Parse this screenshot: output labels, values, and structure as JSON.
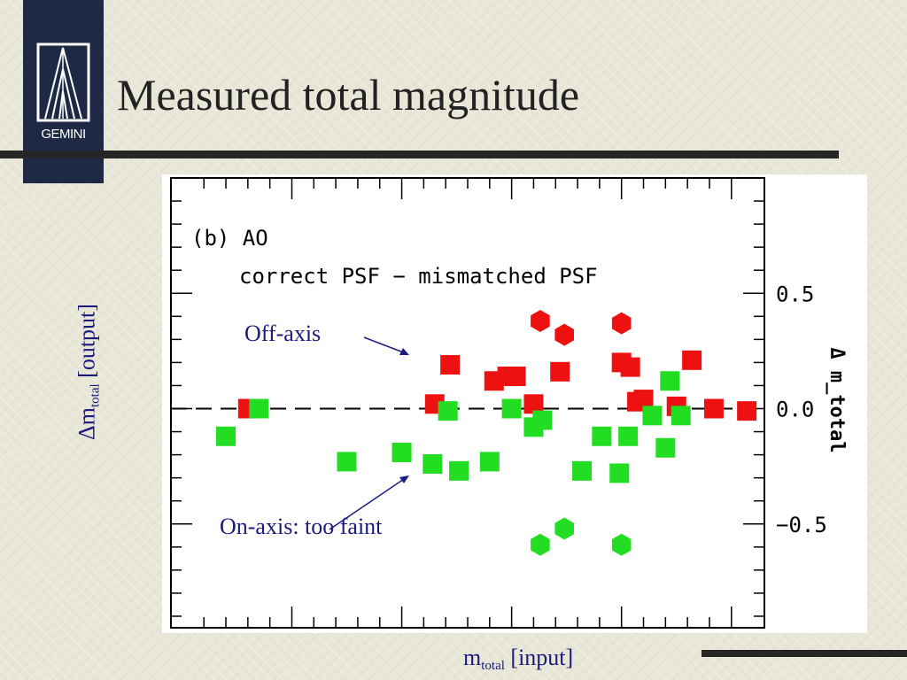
{
  "slide": {
    "title": "Measured total magnitude",
    "logo_text": "GEMINI",
    "ylabel": {
      "prefix": "Δm",
      "sub": "total",
      "suffix": " [output]"
    },
    "xlabel": {
      "prefix": "m",
      "sub": "total",
      "suffix": " [input]"
    }
  },
  "annotations": {
    "off_axis": "Off-axis",
    "on_axis": "On-axis: too faint"
  },
  "colors": {
    "text_blue": "#1a1a80",
    "red_series": "#ee1111",
    "green_series": "#22dd22",
    "dark_bar": "#262626",
    "logo_bg": "#1e2a45"
  },
  "chart_data": {
    "type": "scatter",
    "panel_label": "(b) AO",
    "subtitle": "correct PSF − mismatched PSF",
    "ylabel_right": "Δ m_total",
    "ylim": [
      -0.95,
      1.0
    ],
    "y_ticks": [
      0.5,
      0.0,
      -0.5
    ],
    "y_tick_labels": [
      "0.5",
      "0.0",
      "−0.5"
    ],
    "xlim": [
      -0.05,
      2.65
    ],
    "reference_line": {
      "y": 0.0,
      "style": "dashed"
    },
    "series": [
      {
        "color": "red",
        "squares": [
          [
            0.3,
            0.0
          ],
          [
            1.15,
            0.02
          ],
          [
            1.22,
            0.19
          ],
          [
            1.42,
            0.12
          ],
          [
            1.48,
            0.14
          ],
          [
            1.52,
            0.14
          ],
          [
            1.6,
            0.02
          ],
          [
            1.72,
            0.16
          ],
          [
            2.0,
            0.2
          ],
          [
            2.04,
            0.18
          ],
          [
            2.07,
            0.03
          ],
          [
            2.1,
            0.04
          ],
          [
            2.25,
            0.01
          ],
          [
            2.32,
            0.21
          ],
          [
            2.42,
            0.0
          ],
          [
            2.57,
            -0.01
          ]
        ],
        "hexagons": [
          [
            1.63,
            0.38
          ],
          [
            1.74,
            0.32
          ],
          [
            2.0,
            0.37
          ]
        ]
      },
      {
        "color": "green",
        "squares": [
          [
            0.2,
            -0.12
          ],
          [
            0.35,
            0.0
          ],
          [
            0.75,
            -0.23
          ],
          [
            1.0,
            -0.19
          ],
          [
            1.14,
            -0.24
          ],
          [
            1.21,
            -0.01
          ],
          [
            1.26,
            -0.27
          ],
          [
            1.4,
            -0.23
          ],
          [
            1.5,
            0.0
          ],
          [
            1.6,
            -0.08
          ],
          [
            1.64,
            -0.05
          ],
          [
            1.82,
            -0.27
          ],
          [
            1.91,
            -0.12
          ],
          [
            1.99,
            -0.28
          ],
          [
            2.03,
            -0.12
          ],
          [
            2.14,
            -0.03
          ],
          [
            2.2,
            -0.17
          ],
          [
            2.22,
            0.12
          ],
          [
            2.27,
            -0.03
          ]
        ],
        "hexagons": [
          [
            1.63,
            -0.59
          ],
          [
            1.74,
            -0.52
          ],
          [
            2.0,
            -0.59
          ]
        ]
      }
    ]
  }
}
